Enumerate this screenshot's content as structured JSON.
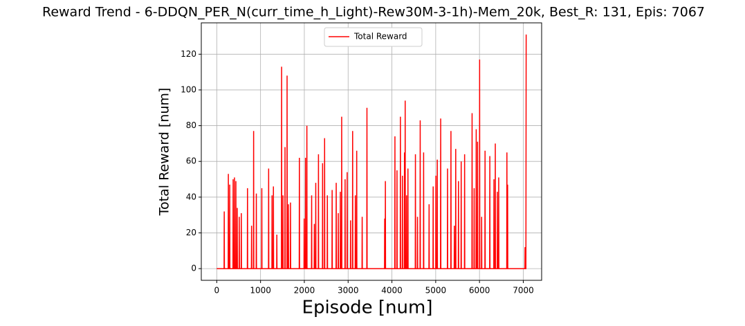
{
  "chart_data": {
    "type": "line",
    "title": "Reward Trend - 6-DDQN_PER_N(curr_time_h_Light)-Rew30M-3-1h)-Mem_20k, Best_R: 131, Epis: 7067",
    "xlabel": "Episode [num]",
    "ylabel": "Total Reward [num]",
    "xlim": [
      -353,
      7419
    ],
    "ylim": [
      -6.55,
      137.55
    ],
    "xticks": [
      0,
      1000,
      2000,
      3000,
      4000,
      5000,
      6000,
      7000
    ],
    "yticks": [
      0,
      20,
      40,
      60,
      80,
      100,
      120
    ],
    "grid": true,
    "legend": "upper center",
    "series": [
      {
        "name": "Total Reward",
        "color": "#ff0000",
        "x": [
          0,
          167,
          171,
          175,
          261,
          265,
          269,
          292,
          296,
          300,
          370,
          374,
          378,
          401,
          405,
          409,
          433,
          437,
          441,
          464,
          468,
          472,
          510,
          514,
          518,
          557,
          561,
          565,
          698,
          702,
          706,
          791,
          795,
          799,
          838,
          842,
          846,
          900,
          904,
          908,
          1025,
          1029,
          1033,
          1181,
          1185,
          1189,
          1259,
          1263,
          1267,
          1290,
          1294,
          1298,
          1368,
          1372,
          1376,
          1477,
          1481,
          1485,
          1508,
          1512,
          1516,
          1555,
          1559,
          1563,
          1602,
          1606,
          1610,
          1633,
          1637,
          1641,
          1680,
          1684,
          1688,
          1883,
          1887,
          1891,
          1992,
          1996,
          2000,
          2023,
          2027,
          2031,
          2054,
          2058,
          2062,
          2163,
          2167,
          2171,
          2225,
          2229,
          2233,
          2257,
          2261,
          2265,
          2319,
          2323,
          2327,
          2413,
          2417,
          2421,
          2459,
          2463,
          2467,
          2522,
          2526,
          2530,
          2631,
          2635,
          2639,
          2724,
          2728,
          2732,
          2771,
          2775,
          2779,
          2818,
          2822,
          2826,
          2849,
          2853,
          2857,
          2927,
          2931,
          2935,
          2974,
          2978,
          2982,
          3052,
          3056,
          3060,
          3099,
          3103,
          3107,
          3161,
          3165,
          3169,
          3192,
          3196,
          3200,
          3317,
          3321,
          3325,
          3426,
          3430,
          3434,
          3831,
          3835,
          3839,
          3847,
          3851,
          3855,
          4065,
          4069,
          4073,
          4112,
          4116,
          4120,
          4190,
          4194,
          4198,
          4237,
          4241,
          4245,
          4283,
          4287,
          4291,
          4299,
          4303,
          4307,
          4330,
          4334,
          4338,
          4362,
          4366,
          4370,
          4533,
          4537,
          4541,
          4580,
          4584,
          4588,
          4642,
          4646,
          4650,
          4720,
          4724,
          4728,
          4845,
          4849,
          4853,
          4938,
          4942,
          4946,
          5000,
          5004,
          5008,
          5032,
          5036,
          5040,
          5110,
          5114,
          5118,
          5266,
          5270,
          5274,
          5344,
          5348,
          5352,
          5422,
          5426,
          5430,
          5453,
          5457,
          5461,
          5516,
          5520,
          5524,
          5578,
          5582,
          5586,
          5656,
          5660,
          5664,
          5827,
          5831,
          5835,
          5874,
          5878,
          5882,
          5921,
          5925,
          5929,
          5952,
          5956,
          5960,
          5999,
          6003,
          6007,
          6045,
          6049,
          6053,
          6123,
          6127,
          6131,
          6232,
          6236,
          6240,
          6326,
          6330,
          6334,
          6357,
          6361,
          6365,
          6404,
          6408,
          6412,
          6435,
          6439,
          6443,
          6622,
          6626,
          6630,
          6638,
          6642,
          6646,
          7036,
          7040,
          7044,
          7060,
          7066
        ],
        "values": [
          0,
          0,
          32,
          0,
          0,
          53,
          0,
          0,
          47,
          0,
          0,
          50,
          0,
          0,
          51,
          0,
          0,
          49,
          0,
          0,
          34,
          0,
          0,
          29,
          0,
          0,
          31,
          0,
          0,
          45,
          0,
          0,
          24,
          0,
          0,
          77,
          0,
          0,
          42,
          0,
          0,
          45,
          0,
          0,
          56,
          0,
          0,
          41,
          0,
          0,
          46,
          0,
          0,
          19,
          0,
          0,
          113,
          0,
          0,
          41,
          0,
          0,
          68,
          0,
          0,
          108,
          0,
          0,
          36,
          0,
          0,
          37,
          0,
          0,
          62,
          0,
          0,
          28,
          0,
          0,
          62,
          0,
          0,
          80,
          0,
          0,
          41,
          0,
          0,
          25,
          0,
          0,
          48,
          0,
          0,
          64,
          0,
          0,
          59,
          0,
          0,
          73,
          0,
          0,
          41,
          0,
          0,
          44,
          0,
          0,
          48,
          0,
          0,
          31,
          0,
          0,
          43,
          0,
          0,
          85,
          0,
          0,
          50,
          0,
          0,
          54,
          0,
          0,
          27,
          0,
          0,
          77,
          0,
          0,
          41,
          0,
          0,
          66,
          0,
          0,
          29,
          0,
          0,
          90,
          0,
          0,
          28,
          0,
          0,
          49,
          0,
          0,
          74,
          0,
          0,
          55,
          0,
          0,
          85,
          0,
          0,
          52,
          0,
          0,
          65,
          0,
          0,
          94,
          0,
          0,
          41,
          0,
          0,
          56,
          0,
          0,
          64,
          0,
          0,
          29,
          0,
          0,
          83,
          0,
          0,
          65,
          0,
          0,
          36,
          0,
          0,
          46,
          0,
          0,
          52,
          0,
          0,
          61,
          0,
          0,
          84,
          0,
          0,
          56,
          0,
          0,
          77,
          0,
          0,
          24,
          0,
          0,
          67,
          0,
          0,
          49,
          0,
          0,
          60,
          0,
          0,
          64,
          0,
          0,
          87,
          0,
          0,
          45,
          0,
          0,
          78,
          0,
          0,
          71,
          0,
          0,
          117,
          0,
          0,
          29,
          0,
          0,
          66,
          0,
          0,
          63,
          0,
          0,
          50,
          0,
          0,
          70,
          0,
          0,
          43,
          0,
          0,
          51,
          0,
          0,
          65,
          0,
          0,
          47,
          0,
          0,
          12,
          0,
          0,
          131
        ]
      }
    ]
  }
}
